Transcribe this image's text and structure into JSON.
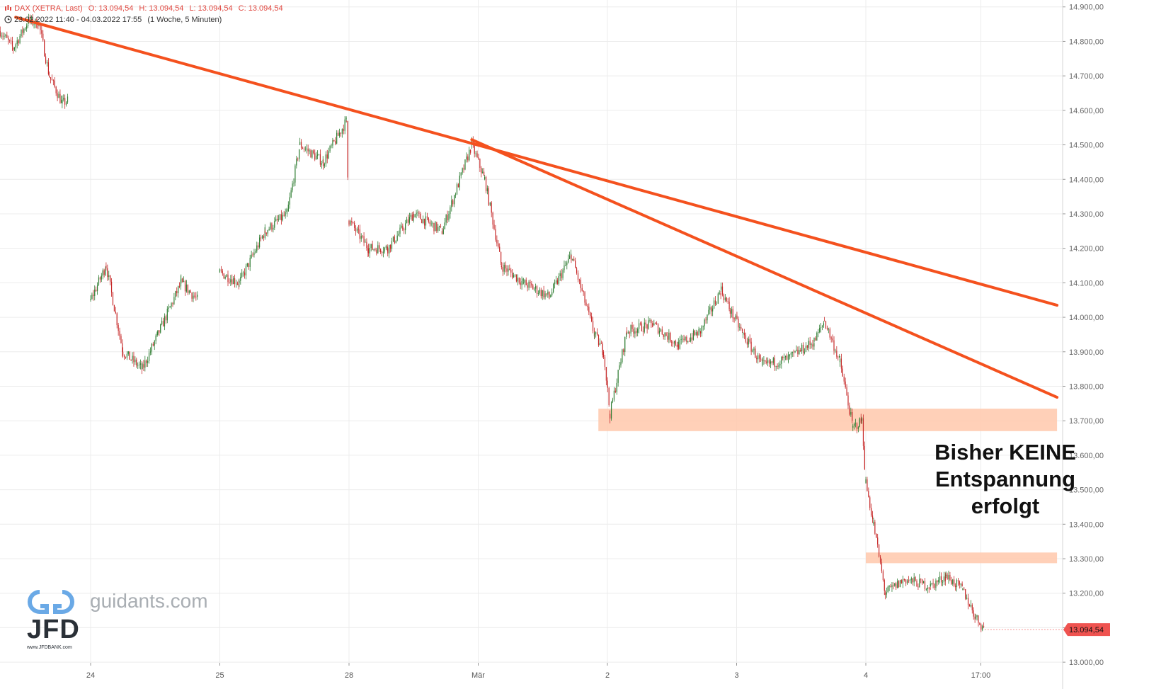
{
  "header": {
    "instrument": "DAX (XETRA, Last)",
    "open": "O: 13.094,54",
    "high": "H: 13.094,54",
    "low": "L: 13.094,54",
    "close": "C: 13.094,54",
    "range": "23.02.2022 11:40 - 04.03.2022 17:55",
    "period": "(1 Woche, 5 Minuten)"
  },
  "watermark": {
    "site": "guidants.com",
    "brand": "JFD",
    "url": "www.JFDBANK.com"
  },
  "note": {
    "line1": "Bisher KEINE",
    "line2": "Entspannung",
    "line3": "erfolgt"
  },
  "colors": {
    "up": "#2e7d32",
    "down": "#c62828",
    "trendline": "#f4511e",
    "zone": "#ffcbb0",
    "lastprice": "#ef5350",
    "grid": "#ececec"
  },
  "chart_data": {
    "type": "candlestick",
    "interval": "5 Minuten",
    "ylim": [
      12990,
      14920
    ],
    "y_ticks": [
      "13.000,00",
      "13.100,00",
      "13.200,00",
      "13.300,00",
      "13.400,00",
      "13.500,00",
      "13.600,00",
      "13.700,00",
      "13.800,00",
      "13.900,00",
      "14.000,00",
      "14.100,00",
      "14.200,00",
      "14.300,00",
      "14.400,00",
      "14.500,00",
      "14.600,00",
      "14.700,00",
      "14.800,00",
      "14.900,00"
    ],
    "x_ticks": [
      {
        "label": "24",
        "t": 1.0
      },
      {
        "label": "25",
        "t": 2.0
      },
      {
        "label": "28",
        "t": 3.0
      },
      {
        "label": "Mär",
        "t": 4.0
      },
      {
        "label": "2",
        "t": 5.0
      },
      {
        "label": "3",
        "t": 6.0
      },
      {
        "label": "4",
        "t": 7.0
      },
      {
        "label": "17:00",
        "t": 7.89
      }
    ],
    "x_range": [
      0.3,
      8.48
    ],
    "last_price": {
      "value": 13094.54,
      "label": "13.094,54"
    },
    "price_path": [
      [
        0.3,
        14830
      ],
      [
        0.4,
        14780
      ],
      [
        0.52,
        14860
      ],
      [
        0.6,
        14850
      ],
      [
        0.68,
        14700
      ],
      [
        0.78,
        14620
      ],
      [
        0.83,
        14630
      ],
      [
        1.0,
        14050
      ],
      [
        1.12,
        14150
      ],
      [
        1.25,
        13900
      ],
      [
        1.4,
        13850
      ],
      [
        1.52,
        13950
      ],
      [
        1.7,
        14100
      ],
      [
        1.83,
        14050
      ],
      [
        2.0,
        14130
      ],
      [
        2.15,
        14100
      ],
      [
        2.35,
        14250
      ],
      [
        2.52,
        14300
      ],
      [
        2.62,
        14500
      ],
      [
        2.8,
        14450
      ],
      [
        2.98,
        14570
      ],
      [
        3.0,
        14280
      ],
      [
        3.15,
        14200
      ],
      [
        3.3,
        14200
      ],
      [
        3.5,
        14300
      ],
      [
        3.72,
        14250
      ],
      [
        3.95,
        14500
      ],
      [
        4.05,
        14400
      ],
      [
        4.18,
        14150
      ],
      [
        4.35,
        14100
      ],
      [
        4.55,
        14060
      ],
      [
        4.72,
        14180
      ],
      [
        4.9,
        13950
      ],
      [
        4.97,
        13900
      ],
      [
        5.02,
        13720
      ],
      [
        5.15,
        13960
      ],
      [
        5.35,
        13980
      ],
      [
        5.55,
        13920
      ],
      [
        5.72,
        13960
      ],
      [
        5.88,
        14080
      ],
      [
        5.95,
        14020
      ],
      [
        6.05,
        13950
      ],
      [
        6.2,
        13860
      ],
      [
        6.4,
        13880
      ],
      [
        6.6,
        13930
      ],
      [
        6.68,
        13990
      ],
      [
        6.8,
        13870
      ],
      [
        6.9,
        13680
      ],
      [
        6.97,
        13700
      ],
      [
        7.0,
        13520
      ],
      [
        7.06,
        13400
      ],
      [
        7.15,
        13200
      ],
      [
        7.3,
        13240
      ],
      [
        7.5,
        13220
      ],
      [
        7.62,
        13250
      ],
      [
        7.75,
        13210
      ],
      [
        7.85,
        13130
      ],
      [
        7.92,
        13095
      ]
    ],
    "trendlines": [
      {
        "from": [
          0.42,
          14870
        ],
        "to": [
          8.48,
          14035
        ]
      },
      {
        "from": [
          3.95,
          14515
        ],
        "to": [
          8.48,
          13768
        ]
      }
    ],
    "zones": [
      {
        "from": 4.93,
        "to": 8.48,
        "low": 13670,
        "high": 13735
      },
      {
        "from": 7.0,
        "to": 8.48,
        "low": 13287,
        "high": 13318
      }
    ]
  }
}
